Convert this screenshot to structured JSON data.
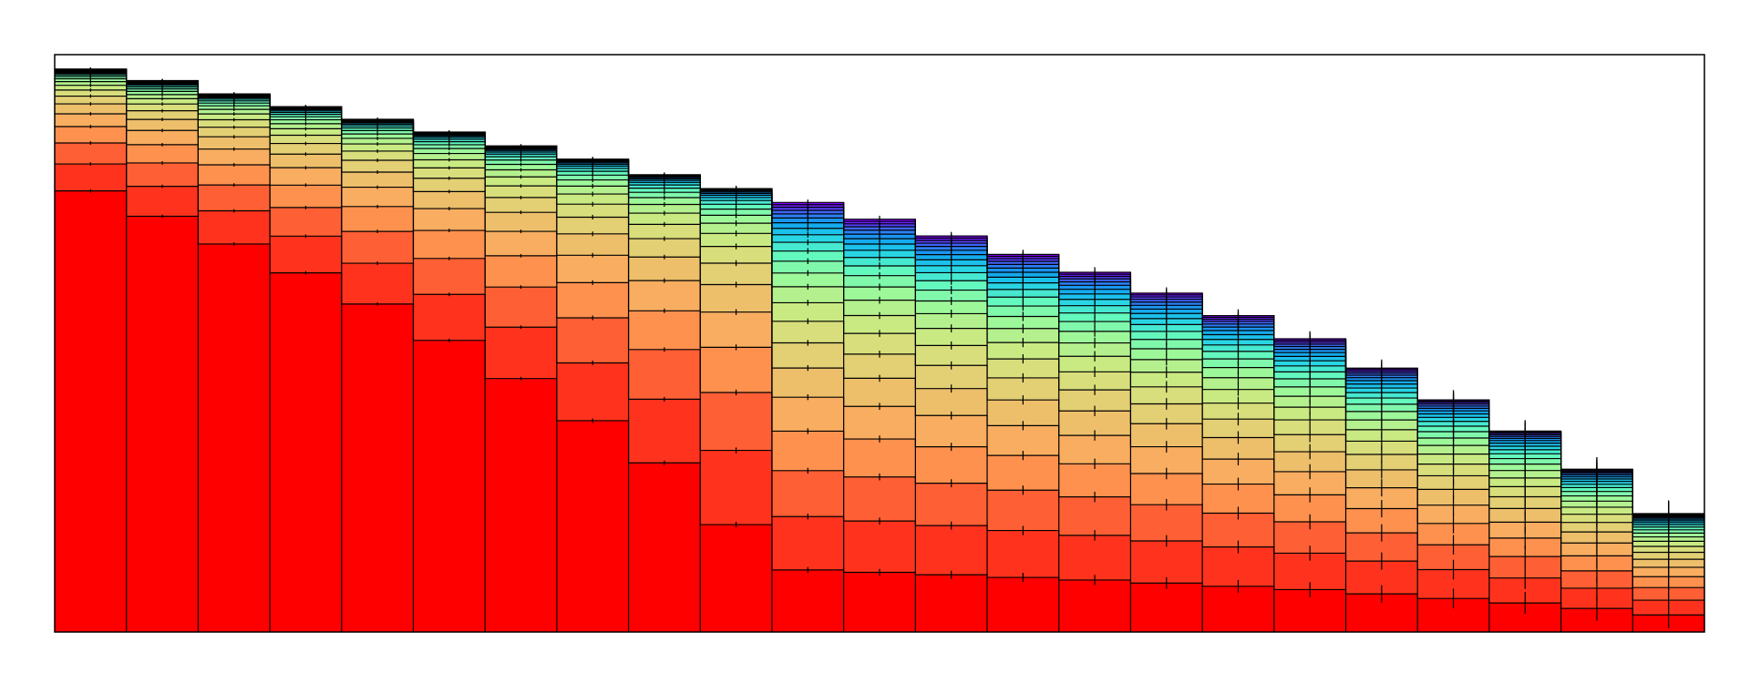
{
  "chart_data": {
    "type": "bar",
    "stacked": true,
    "x_bins": 23,
    "layers": 23,
    "ylim": [
      0,
      100
    ],
    "axes_visible": false,
    "ticks_visible": false,
    "grid": false,
    "legend": "none",
    "colormap": "rainbow",
    "bin_totals": [
      97.5,
      95.5,
      93.2,
      91.0,
      88.8,
      86.6,
      84.2,
      81.9,
      79.2,
      76.8,
      74.4,
      71.5,
      68.6,
      65.4,
      62.3,
      58.7,
      54.8,
      50.8,
      45.7,
      40.2,
      34.8,
      28.2,
      20.5
    ],
    "boundary_cap_values": [
      0.6,
      1.7,
      2.9,
      4.2,
      5.4,
      6.7,
      7.8,
      8.6,
      9.4,
      9.9,
      11.0,
      12.0,
      13.0,
      13.5,
      13.4,
      16.0,
      17.8,
      20.8,
      23.1,
      26.7,
      30.8,
      35.1,
      40.7,
      46.7,
      55.8,
      64.1,
      74.4,
      100.0
    ],
    "first_layer_top": [
      76.4,
      72.0,
      67.2,
      62.2,
      56.8,
      50.5,
      43.9,
      36.6,
      29.3,
      18.6
    ],
    "error_bar_halfwidth": [
      0.3,
      0.3,
      0.3,
      0.3,
      0.3,
      0.3,
      0.3,
      0.4,
      0.4,
      0.5,
      0.5,
      0.6,
      0.7,
      0.8,
      0.9,
      1.0,
      1.1,
      1.3,
      1.5,
      1.7,
      1.9,
      2.1,
      2.3
    ]
  }
}
